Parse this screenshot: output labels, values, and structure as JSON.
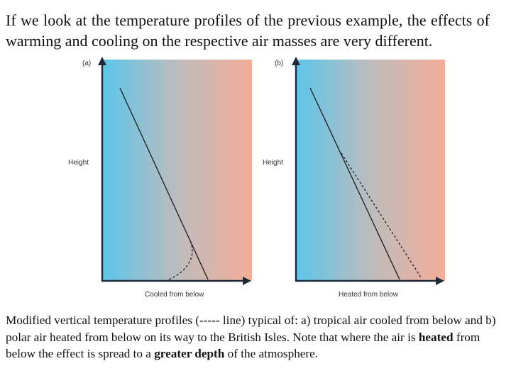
{
  "intro_text": "If we look at the temperature profiles of the previous example, the effects of warming and cooling on the respective air masses are very different.",
  "panels": [
    {
      "label": "(a)",
      "ylabel": "Height",
      "xlabel": "Cooled from below"
    },
    {
      "label": "(b)",
      "ylabel": "Height",
      "xlabel": "Heated from below"
    }
  ],
  "caption": {
    "part1": "Modified vertical temperature profiles (----- line) typical of: a) tropical air cooled from below and b) polar air heated from below on its way to the British Isles. Note that where the air is ",
    "bold1": "heated",
    "part2": " from below the effect is spread to a ",
    "bold2": "greater depth",
    "part3": " of the atmosphere."
  },
  "colors": {
    "cold": "#5bc6ea",
    "warm": "#f5ad98",
    "axis": "#1e2a38",
    "profile": "#1a1a1a"
  }
}
